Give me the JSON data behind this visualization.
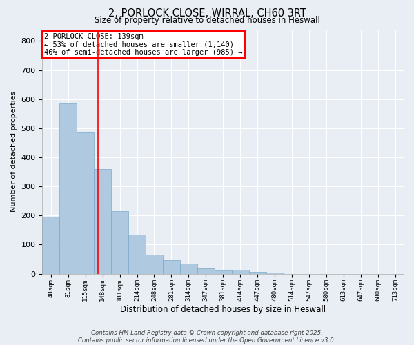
{
  "title": "2, PORLOCK CLOSE, WIRRAL, CH60 3RT",
  "subtitle": "Size of property relative to detached houses in Heswall",
  "xlabel": "Distribution of detached houses by size in Heswall",
  "ylabel": "Number of detached properties",
  "bar_color": "#aec9e0",
  "bar_edge_color": "#7aaac8",
  "bin_labels": [
    "48sqm",
    "81sqm",
    "115sqm",
    "148sqm",
    "181sqm",
    "214sqm",
    "248sqm",
    "281sqm",
    "314sqm",
    "347sqm",
    "381sqm",
    "414sqm",
    "447sqm",
    "480sqm",
    "514sqm",
    "547sqm",
    "580sqm",
    "613sqm",
    "647sqm",
    "680sqm",
    "713sqm"
  ],
  "bar_heights": [
    195,
    585,
    485,
    360,
    215,
    133,
    65,
    47,
    35,
    17,
    10,
    12,
    7,
    4,
    0,
    0,
    0,
    0,
    0,
    0,
    0
  ],
  "ylim": [
    0,
    840
  ],
  "yticks": [
    0,
    100,
    200,
    300,
    400,
    500,
    600,
    700,
    800
  ],
  "annotation_text": "2 PORLOCK CLOSE: 139sqm\n← 53% of detached houses are smaller (1,140)\n46% of semi-detached houses are larger (985) →",
  "background_color": "#e8eef4",
  "grid_color": "#ffffff",
  "footer_text": "Contains HM Land Registry data © Crown copyright and database right 2025.\nContains public sector information licensed under the Open Government Licence v3.0."
}
